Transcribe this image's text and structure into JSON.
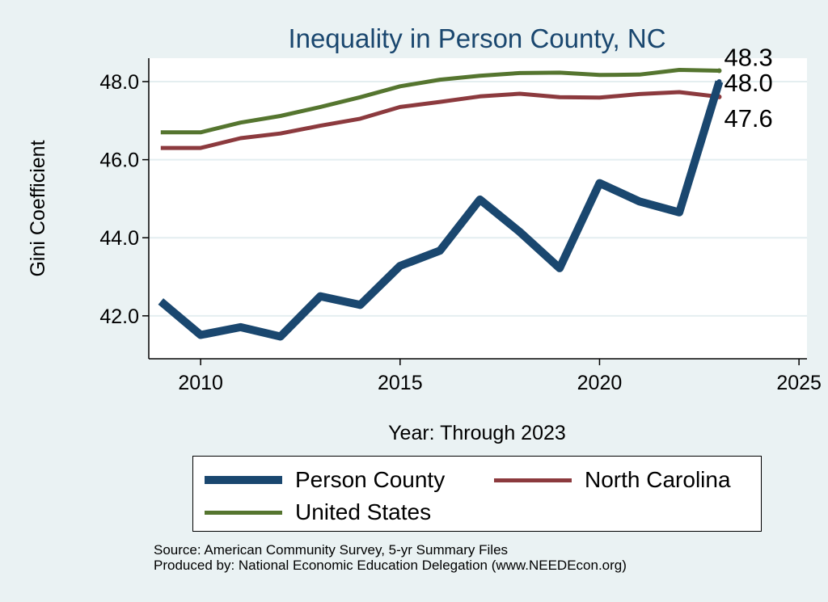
{
  "chart_data": {
    "type": "line",
    "title": "Inequality in Person County, NC",
    "xlabel": "Year: Through 2023",
    "ylabel": "Gini Coefficient",
    "xlim": [
      2008.7,
      2025.2
    ],
    "ylim": [
      40.9,
      48.6
    ],
    "x_ticks": [
      2010,
      2015,
      2020,
      2025
    ],
    "y_ticks": [
      42.0,
      44.0,
      46.0,
      48.0
    ],
    "y_tick_labels": [
      "42.0",
      "44.0",
      "46.0",
      "48.0"
    ],
    "x": [
      2009,
      2010,
      2011,
      2012,
      2013,
      2014,
      2015,
      2016,
      2017,
      2018,
      2019,
      2020,
      2021,
      2022,
      2023
    ],
    "series": [
      {
        "name": "United States",
        "color": "#55752f",
        "values": [
          46.7,
          46.7,
          46.95,
          47.12,
          47.35,
          47.6,
          47.88,
          48.05,
          48.15,
          48.22,
          48.23,
          48.17,
          48.18,
          48.3,
          48.28
        ],
        "end_label": "48.3"
      },
      {
        "name": "North Carolina",
        "color": "#8c3a3e",
        "values": [
          46.3,
          46.3,
          46.55,
          46.67,
          46.87,
          47.05,
          47.35,
          47.48,
          47.62,
          47.69,
          47.6,
          47.59,
          47.68,
          47.73,
          47.61
        ],
        "end_label": "47.6"
      },
      {
        "name": "Person County",
        "color": "#1a476f",
        "values": [
          42.37,
          41.51,
          41.71,
          41.47,
          42.5,
          42.28,
          43.28,
          43.67,
          44.98,
          44.15,
          43.22,
          45.4,
          44.93,
          44.65,
          48.0
        ],
        "end_label": "48.0"
      }
    ]
  },
  "legend": {
    "person_county": "Person County",
    "north_carolina": "North Carolina",
    "united_states": "United States"
  },
  "colors": {
    "person_county": "#1a476f",
    "north_carolina": "#8c3a3e",
    "united_states": "#55752f"
  },
  "footer": {
    "source": "Source: American Community Survey, 5-yr Summary Files",
    "produced_by": "Produced by: National Economic Education Delegation (www.NEEDEcon.org)"
  }
}
